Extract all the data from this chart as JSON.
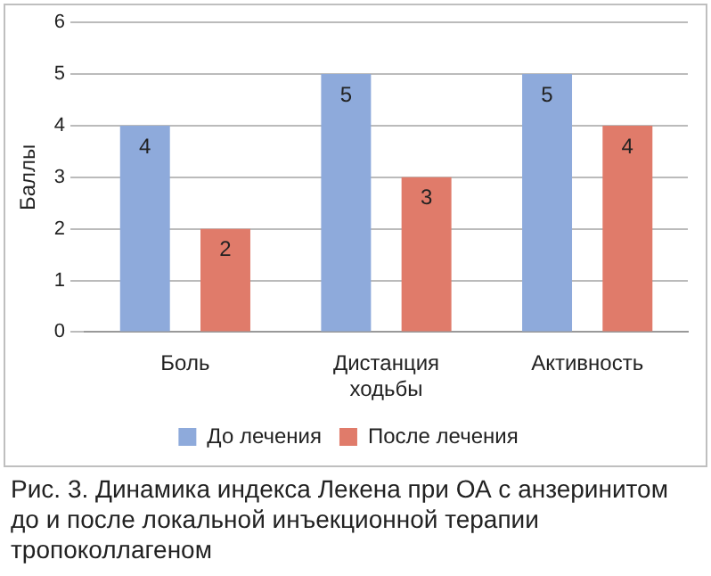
{
  "chart_data": {
    "type": "bar",
    "ylabel": "Баллы",
    "categories": [
      "Боль",
      "Дистанция ходьбы",
      "Активность"
    ],
    "series": [
      {
        "name": "До лечения",
        "color": "#8eaadb",
        "values": [
          4,
          5,
          5
        ]
      },
      {
        "name": "После лечения",
        "color": "#e07b6a",
        "values": [
          2,
          3,
          4
        ]
      }
    ],
    "ylim": [
      0,
      6
    ],
    "yticks": [
      0,
      1,
      2,
      3,
      4,
      5,
      6
    ],
    "grid": "y",
    "legend": "bottom",
    "data_labels": true,
    "annotations": [
      "Рис. 3. Динамика индекса Лекена при ОА с анзеринитом до и после локальной инъекционной терапии тропоколлагеном"
    ]
  }
}
